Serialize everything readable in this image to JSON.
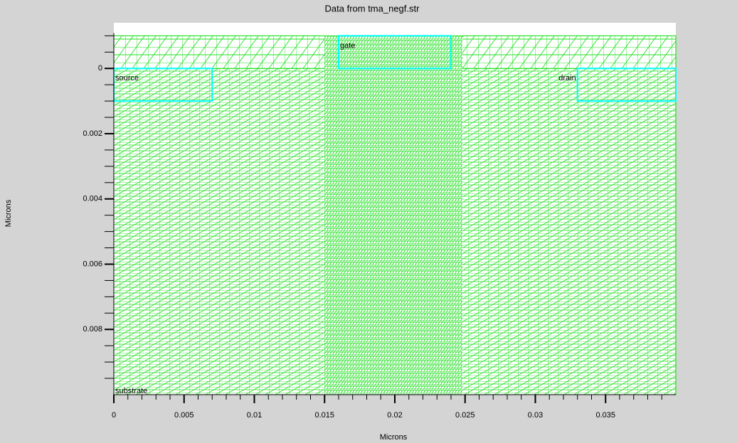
{
  "chart_data": {
    "type": "mesh",
    "title": "Data from tma_negf.str",
    "x_label": "Microns",
    "y_label": "Microns",
    "xlim": [
      0,
      0.04
    ],
    "ylim": [
      0.01,
      -0.0014
    ],
    "xticks": [
      0,
      0.005,
      0.01,
      0.015,
      0.02,
      0.025,
      0.03,
      0.035
    ],
    "yticks": [
      0,
      0.002,
      0.004,
      0.006,
      0.008
    ],
    "mesh_color": "#00e000",
    "substrate": {
      "name": "substrate",
      "x": [
        0,
        0.04
      ],
      "y": [
        0,
        0.01
      ]
    },
    "oxide": {
      "x": [
        0,
        0.04
      ],
      "y": [
        -0.001,
        0
      ]
    },
    "regions": [
      {
        "name": "source",
        "x": [
          0,
          0.007
        ],
        "y": [
          0,
          0.001
        ],
        "color": "#00ffff"
      },
      {
        "name": "gate",
        "x": [
          0.016,
          0.024
        ],
        "y": [
          -0.001,
          0
        ],
        "color": "#00ffff"
      },
      {
        "name": "drain",
        "x": [
          0.033,
          0.04
        ],
        "y": [
          0,
          0.001
        ],
        "color": "#00ffff"
      }
    ]
  }
}
